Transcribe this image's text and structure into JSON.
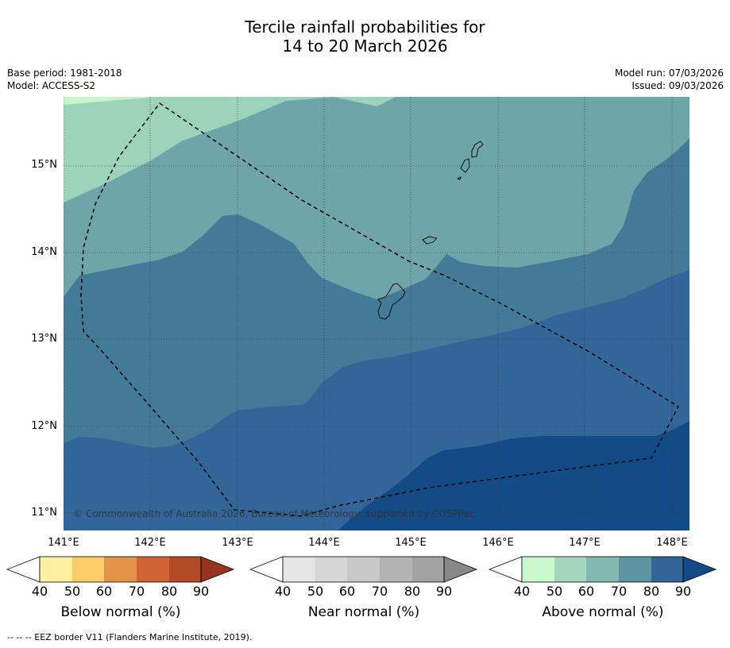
{
  "title": {
    "line1": "Tercile rainfall probabilities for",
    "line2": "14 to 20 March 2026"
  },
  "meta": {
    "base_period": "Base period: 1981-2018",
    "model": "Model: ACCESS-S2",
    "model_run": "Model run: 07/03/2026",
    "issued": "Issued: 09/03/2026"
  },
  "map": {
    "copyright": "© Commonwealth of Australia 2026, Bureau of Meteorology, supported by COSPPac",
    "lat_labels": [
      "15°N",
      "14°N",
      "13°N",
      "12°N",
      "11°N"
    ],
    "lon_labels": [
      "141°E",
      "142°E",
      "143°E",
      "144°E",
      "145°E",
      "146°E",
      "147°E",
      "148°E"
    ],
    "category_colors": {
      "above_40": "#c7f5c9",
      "above_50": "#9ed3bb",
      "above_60": "#6fa5a9",
      "above_70": "#437a98",
      "above_80": "#336698",
      "above_90": "#134b87"
    }
  },
  "legends": [
    {
      "title": "Below normal (%)",
      "ticks": [
        "40",
        "50",
        "60",
        "70",
        "80",
        "90"
      ],
      "colors": [
        "#fff0a0",
        "#fdcc66",
        "#e39448",
        "#cf6334",
        "#b24a28",
        "#98331f"
      ]
    },
    {
      "title": "Near normal (%)",
      "ticks": [
        "40",
        "50",
        "60",
        "70",
        "80",
        "90"
      ],
      "colors": [
        "#e5e5e5",
        "#d6d6d6",
        "#c8c8c8",
        "#b3b3b3",
        "#a2a2a2",
        "#888888"
      ]
    },
    {
      "title": "Above normal (%)",
      "ticks": [
        "40",
        "50",
        "60",
        "70",
        "80",
        "90"
      ],
      "colors": [
        "#c7f9cd",
        "#a5d6c0",
        "#82b8b0",
        "#5c96a4",
        "#336698",
        "#134b87"
      ]
    }
  ],
  "footnote": "--  --  -- EEZ border V11 (Flanders Marine Institute, 2019)."
}
